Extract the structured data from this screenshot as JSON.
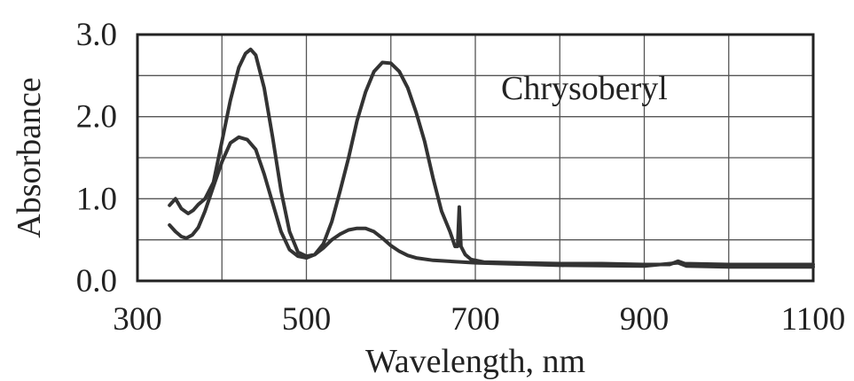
{
  "chart_data": {
    "type": "line",
    "title": "",
    "xlabel": "Wavelength, nm",
    "ylabel": "Absorbance",
    "xlim": [
      300,
      1100
    ],
    "ylim": [
      0.0,
      3.0
    ],
    "x_ticks": [
      300,
      500,
      700,
      900,
      1100
    ],
    "x_tick_labels": [
      "300",
      "500",
      "700",
      "900",
      "1100"
    ],
    "y_ticks": [
      0,
      1,
      2,
      3
    ],
    "y_tick_labels": [
      "0.0",
      "1.0",
      "2.0",
      "3.0"
    ],
    "grid": true,
    "legend": "none",
    "annotation": "Chrysoberyl",
    "series": [
      {
        "color": "#333333",
        "points": [
          [
            338,
            0.92
          ],
          [
            345,
            1.0
          ],
          [
            352,
            0.88
          ],
          [
            360,
            0.82
          ],
          [
            366,
            0.86
          ],
          [
            372,
            0.93
          ],
          [
            380,
            1.0
          ],
          [
            390,
            1.2
          ],
          [
            400,
            1.7
          ],
          [
            410,
            2.2
          ],
          [
            420,
            2.6
          ],
          [
            428,
            2.77
          ],
          [
            434,
            2.82
          ],
          [
            440,
            2.75
          ],
          [
            450,
            2.35
          ],
          [
            460,
            1.75
          ],
          [
            470,
            1.1
          ],
          [
            480,
            0.6
          ],
          [
            490,
            0.35
          ],
          [
            500,
            0.3
          ],
          [
            510,
            0.32
          ],
          [
            520,
            0.45
          ],
          [
            530,
            0.72
          ],
          [
            540,
            1.1
          ],
          [
            550,
            1.5
          ],
          [
            560,
            1.95
          ],
          [
            570,
            2.3
          ],
          [
            580,
            2.55
          ],
          [
            590,
            2.66
          ],
          [
            600,
            2.65
          ],
          [
            610,
            2.55
          ],
          [
            620,
            2.35
          ],
          [
            630,
            2.05
          ],
          [
            640,
            1.7
          ],
          [
            650,
            1.25
          ],
          [
            660,
            0.85
          ],
          [
            670,
            0.6
          ],
          [
            676,
            0.42
          ],
          [
            679,
            0.42
          ],
          [
            681,
            0.9
          ],
          [
            683,
            0.42
          ],
          [
            688,
            0.32
          ],
          [
            695,
            0.26
          ],
          [
            710,
            0.23
          ],
          [
            750,
            0.22
          ],
          [
            800,
            0.21
          ],
          [
            850,
            0.21
          ],
          [
            900,
            0.2
          ],
          [
            930,
            0.2
          ],
          [
            940,
            0.24
          ],
          [
            948,
            0.21
          ],
          [
            1000,
            0.2
          ],
          [
            1050,
            0.2
          ],
          [
            1100,
            0.2
          ]
        ]
      },
      {
        "color": "#333333",
        "points": [
          [
            338,
            0.68
          ],
          [
            345,
            0.6
          ],
          [
            352,
            0.54
          ],
          [
            358,
            0.52
          ],
          [
            365,
            0.56
          ],
          [
            372,
            0.65
          ],
          [
            380,
            0.85
          ],
          [
            390,
            1.15
          ],
          [
            400,
            1.45
          ],
          [
            410,
            1.68
          ],
          [
            420,
            1.75
          ],
          [
            430,
            1.72
          ],
          [
            440,
            1.6
          ],
          [
            450,
            1.3
          ],
          [
            460,
            0.95
          ],
          [
            470,
            0.6
          ],
          [
            480,
            0.38
          ],
          [
            490,
            0.3
          ],
          [
            500,
            0.28
          ],
          [
            510,
            0.32
          ],
          [
            520,
            0.4
          ],
          [
            530,
            0.5
          ],
          [
            540,
            0.57
          ],
          [
            550,
            0.62
          ],
          [
            560,
            0.64
          ],
          [
            570,
            0.64
          ],
          [
            580,
            0.6
          ],
          [
            590,
            0.52
          ],
          [
            600,
            0.43
          ],
          [
            610,
            0.36
          ],
          [
            620,
            0.31
          ],
          [
            630,
            0.28
          ],
          [
            650,
            0.25
          ],
          [
            700,
            0.22
          ],
          [
            800,
            0.19
          ],
          [
            900,
            0.18
          ],
          [
            940,
            0.22
          ],
          [
            950,
            0.18
          ],
          [
            1000,
            0.17
          ],
          [
            1100,
            0.17
          ]
        ]
      }
    ]
  }
}
